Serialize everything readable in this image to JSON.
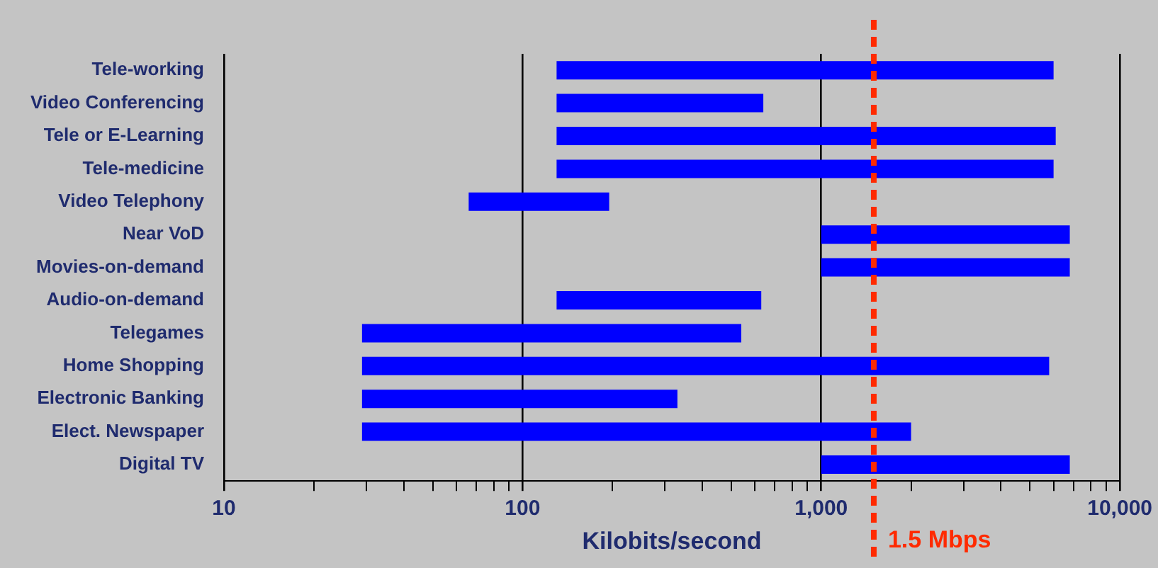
{
  "chart_data": {
    "type": "bar",
    "orientation": "horizontal",
    "log": "x",
    "xlabel": "Kilobits/second",
    "categories": [
      "Tele-working",
      "Video Conferencing",
      "Tele or E-Learning",
      "Tele-medicine",
      "Video Telephony",
      "Near VoD",
      "Movies-on-demand",
      "Audio-on-demand",
      "Telegames",
      "Home Shopping",
      "Electronic Banking",
      "Elect. Newspaper",
      "Digital TV"
    ],
    "base": [
      130,
      130,
      130,
      130,
      66,
      1000,
      1000,
      130,
      29,
      29,
      29,
      29,
      1000
    ],
    "values": [
      5870,
      510,
      5970,
      5870,
      129,
      5800,
      5800,
      500,
      511,
      5771,
      301,
      1971,
      5800
    ],
    "color": "#0000ff",
    "xlim": [
      10,
      10000
    ],
    "xticks": [
      10,
      {
        "value": 20,
        "label": null
      },
      {
        "value": 30,
        "label": null
      },
      {
        "value": 40,
        "label": null
      },
      {
        "value": 50,
        "label": null
      },
      {
        "value": 60,
        "label": null
      },
      {
        "value": 70,
        "label": null
      },
      {
        "value": 80,
        "label": null
      },
      {
        "value": 90,
        "label": null
      },
      100,
      {
        "value": 200,
        "label": null
      },
      {
        "value": 300,
        "label": null
      },
      {
        "value": 400,
        "label": null
      },
      {
        "value": 500,
        "label": null
      },
      {
        "value": 600,
        "label": null
      },
      {
        "value": 700,
        "label": null
      },
      {
        "value": 800,
        "label": null
      },
      {
        "value": 900,
        "label": null
      },
      {
        "value": 1000,
        "label": "1,000"
      },
      {
        "value": 2000,
        "label": null
      },
      {
        "value": 3000,
        "label": null
      },
      {
        "value": 4000,
        "label": null
      },
      {
        "value": 5000,
        "label": null
      },
      {
        "value": 6000,
        "label": null
      },
      {
        "value": 7000,
        "label": null
      },
      {
        "value": 8000,
        "label": null
      },
      {
        "value": 9000,
        "label": null
      },
      {
        "value": 10000,
        "label": "10,000"
      }
    ],
    "grid": "x",
    "legend": false,
    "ref_lines": [
      {
        "axis": "x",
        "value": 1500,
        "label": "1.5 Mbps",
        "color": "#ff2a00",
        "line_style": "dashed"
      }
    ]
  }
}
